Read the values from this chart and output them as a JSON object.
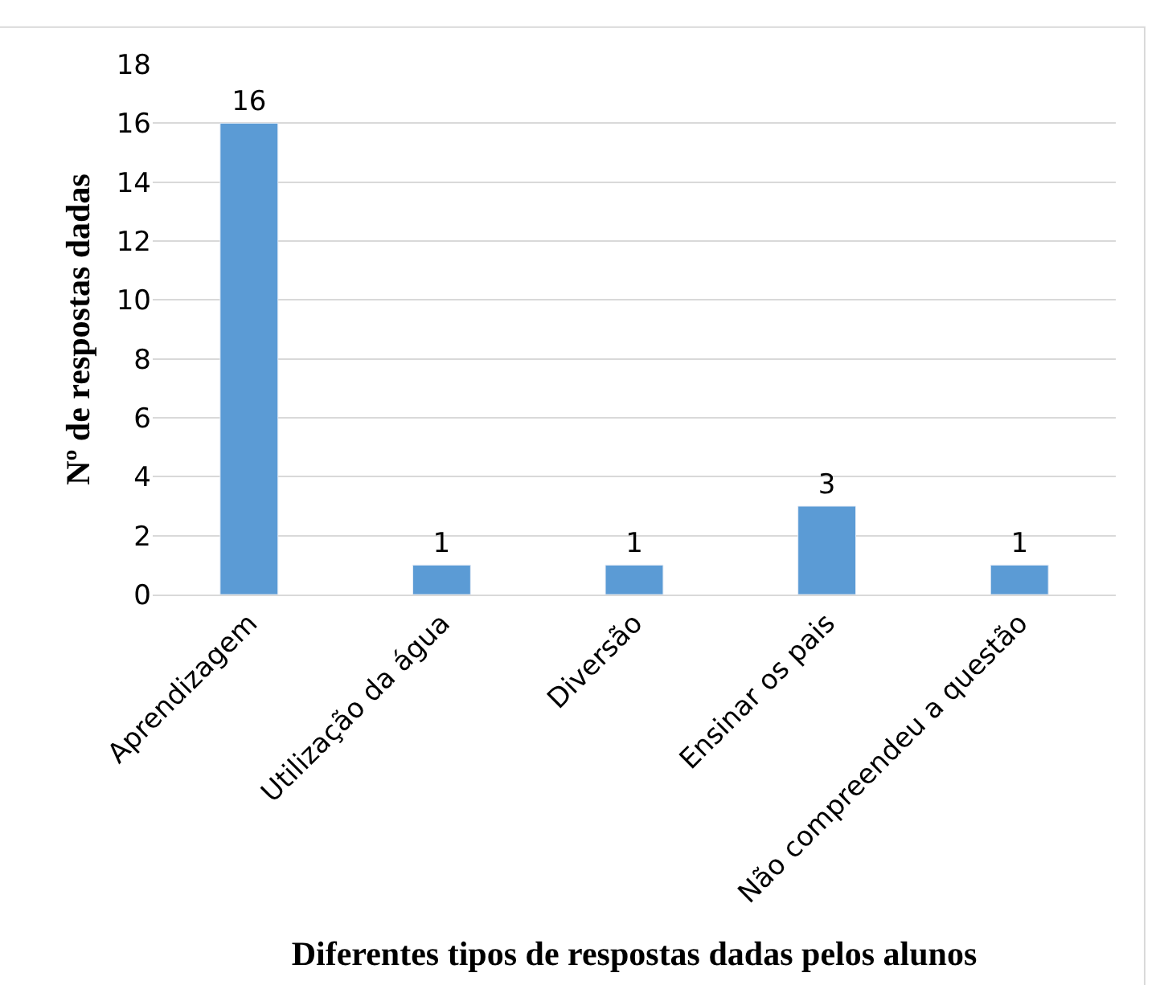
{
  "chart_data": {
    "type": "bar",
    "xlabel": "Diferentes tipos de respostas dadas pelos alunos",
    "ylabel": "Nº de respostas dadas",
    "categories": [
      "Aprendizagem",
      "Utilização da água",
      "Diversão",
      "Ensinar os pais",
      "Não compreendeu a questão"
    ],
    "values": [
      16,
      1,
      1,
      3,
      1
    ],
    "color": "#5b9bd5",
    "ylim": [
      0,
      18
    ],
    "yticks": [
      0,
      2,
      4,
      6,
      8,
      10,
      12,
      14,
      16,
      18
    ],
    "grid": "y",
    "data_labels": true
  }
}
